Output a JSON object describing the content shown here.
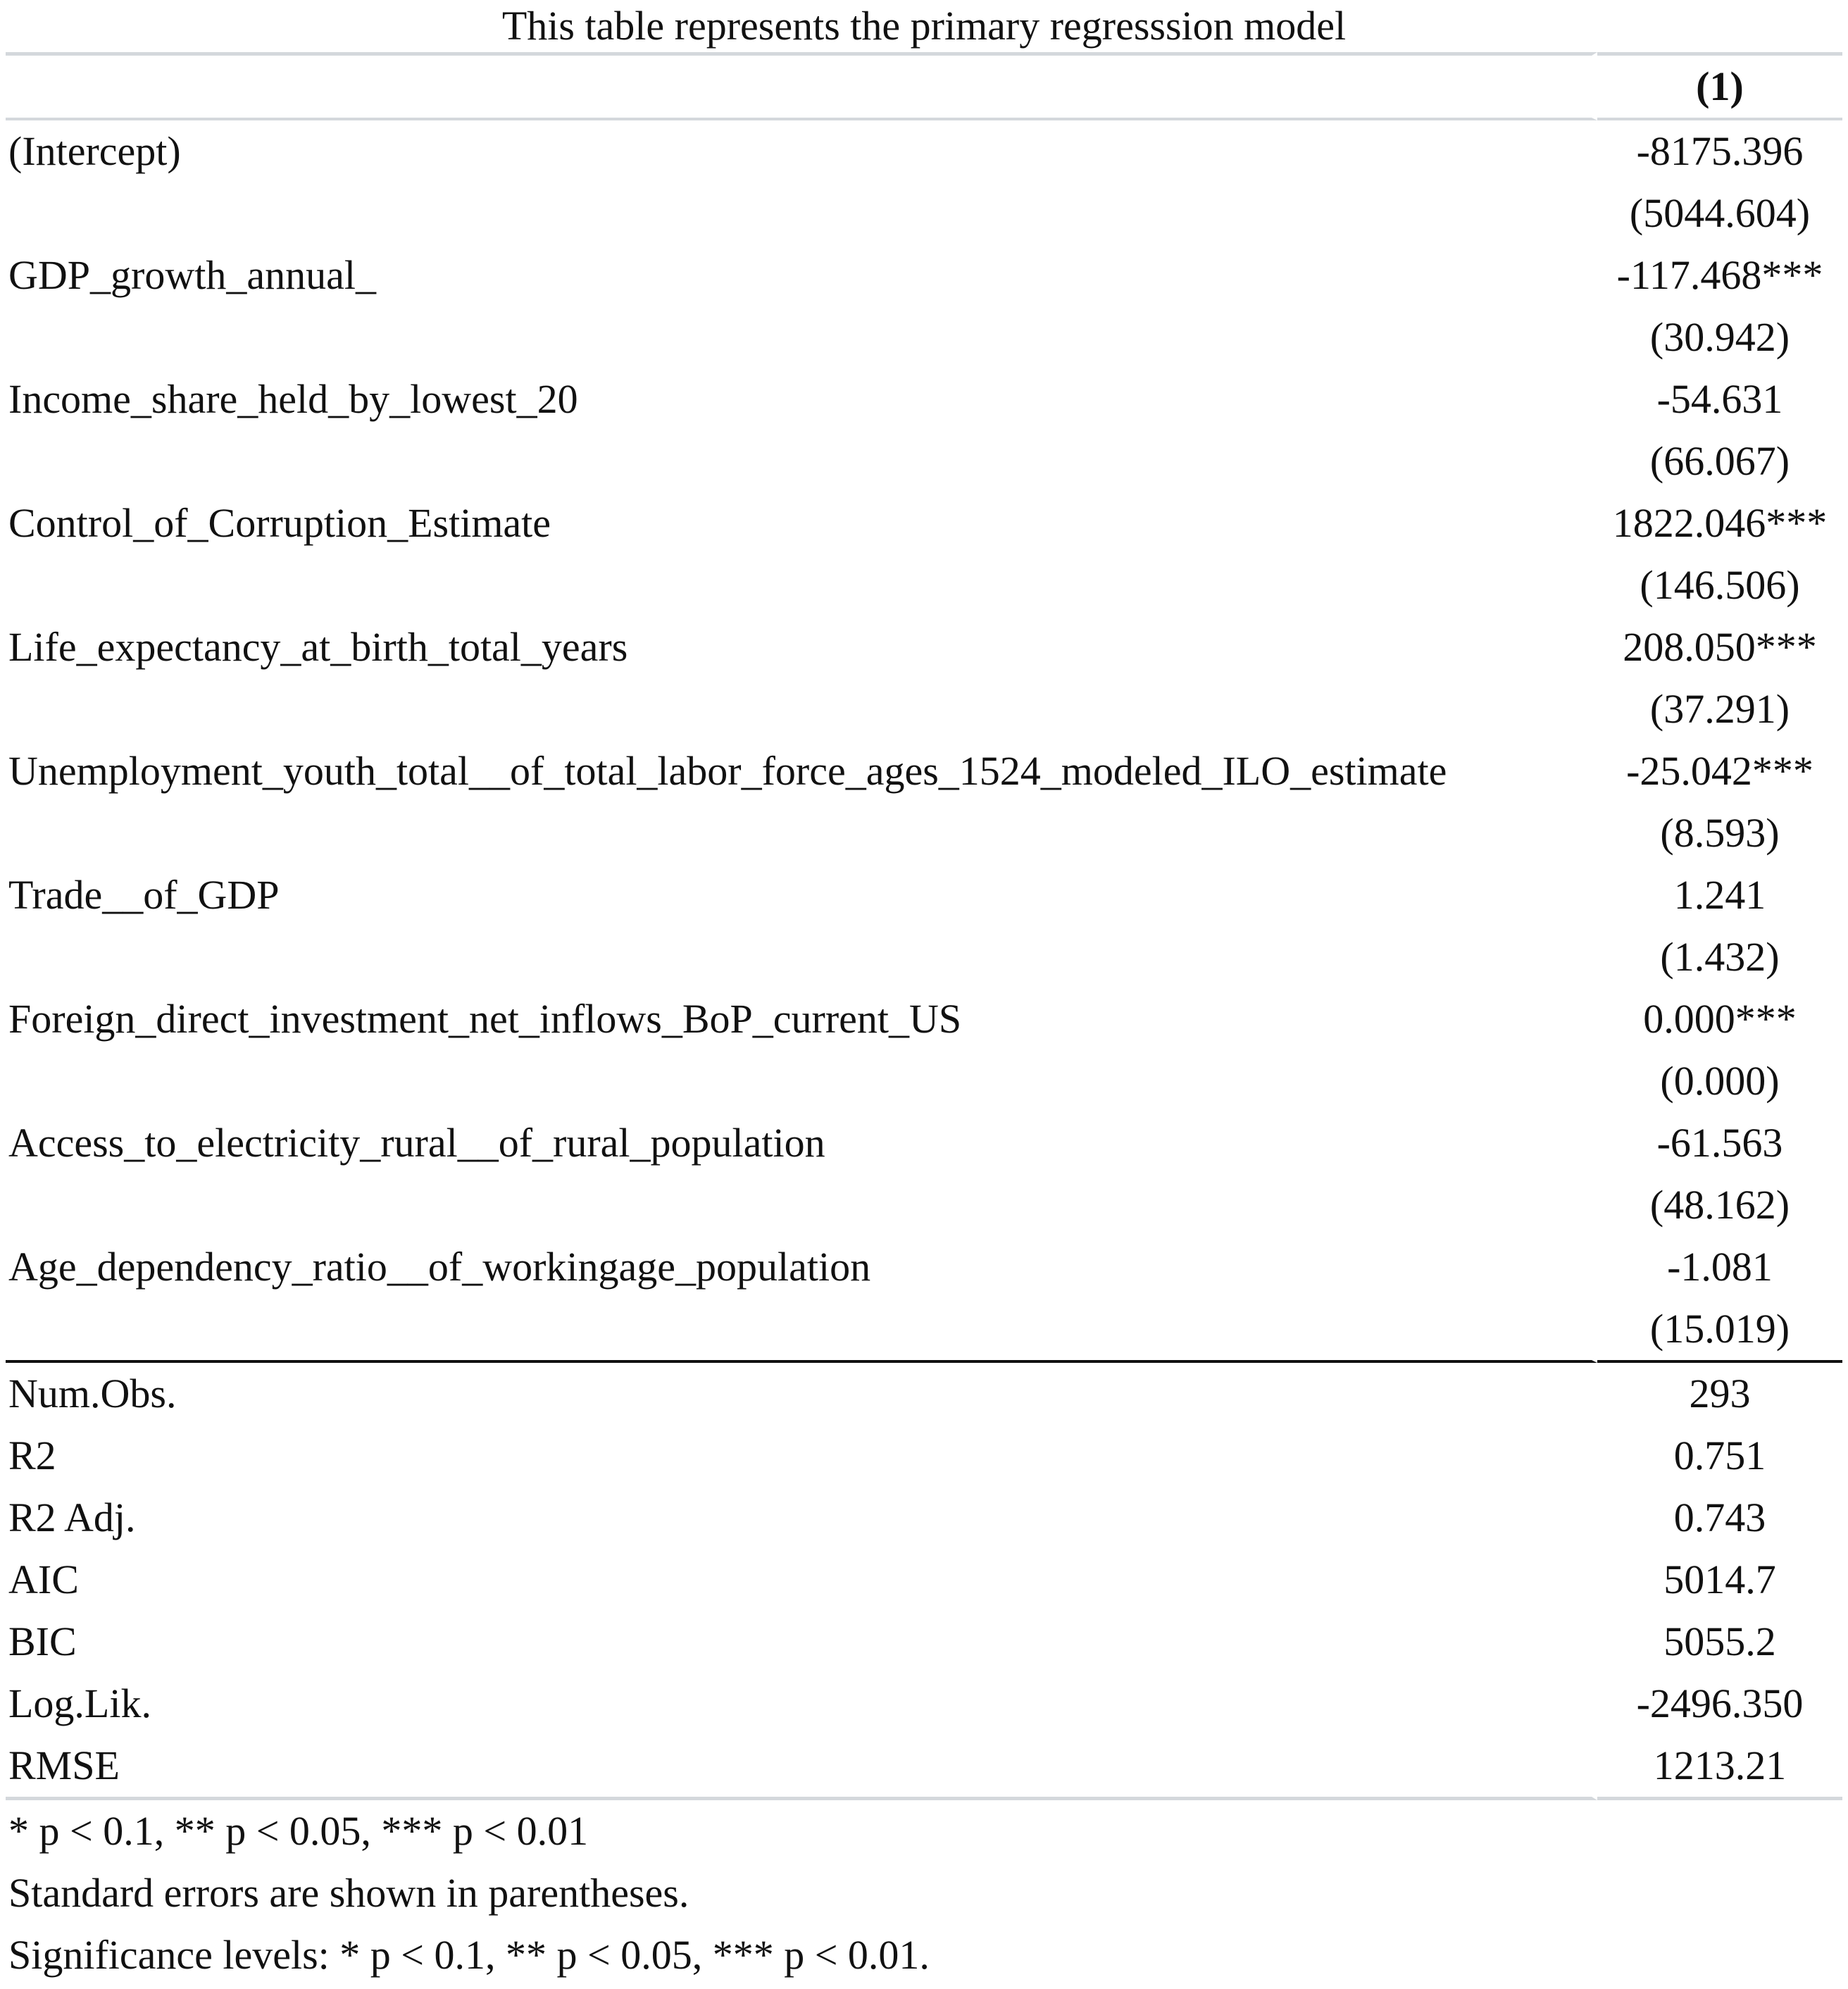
{
  "caption": "This table represents the primary regresssion model",
  "header": {
    "label": "",
    "model": "(1)"
  },
  "coefficients": [
    {
      "term": "(Intercept)",
      "estimate": "-8175.396",
      "se": "(5044.604)"
    },
    {
      "term": "GDP_growth_annual_",
      "estimate": "-117.468***",
      "se": "(30.942)"
    },
    {
      "term": "Income_share_held_by_lowest_20",
      "estimate": "-54.631",
      "se": "(66.067)"
    },
    {
      "term": "Control_of_Corruption_Estimate",
      "estimate": "1822.046***",
      "se": "(146.506)"
    },
    {
      "term": "Life_expectancy_at_birth_total_years",
      "estimate": "208.050***",
      "se": "(37.291)"
    },
    {
      "term": "Unemployment_youth_total__of_total_labor_force_ages_1524_modeled_ILO_estimate",
      "estimate": "-25.042***",
      "se": "(8.593)"
    },
    {
      "term": "Trade__of_GDP",
      "estimate": "1.241",
      "se": "(1.432)"
    },
    {
      "term": "Foreign_direct_investment_net_inflows_BoP_current_US",
      "estimate": "0.000***",
      "se": "(0.000)"
    },
    {
      "term": "Access_to_electricity_rural__of_rural_population",
      "estimate": "-61.563",
      "se": "(48.162)"
    },
    {
      "term": "Age_dependency_ratio__of_workingage_population",
      "estimate": "-1.081",
      "se": "(15.019)"
    }
  ],
  "stats": [
    {
      "label": "Num.Obs.",
      "value": "293"
    },
    {
      "label": "R2",
      "value": "0.751"
    },
    {
      "label": "R2 Adj.",
      "value": "0.743"
    },
    {
      "label": "AIC",
      "value": "5014.7"
    },
    {
      "label": "BIC",
      "value": "5055.2"
    },
    {
      "label": "Log.Lik.",
      "value": "-2496.350"
    },
    {
      "label": "RMSE",
      "value": "1213.21"
    }
  ],
  "notes": [
    "* p < 0.1, ** p < 0.05, *** p < 0.01",
    "Standard errors are shown in parentheses.",
    "Significance levels: * p < 0.1, ** p < 0.05, *** p < 0.01."
  ]
}
